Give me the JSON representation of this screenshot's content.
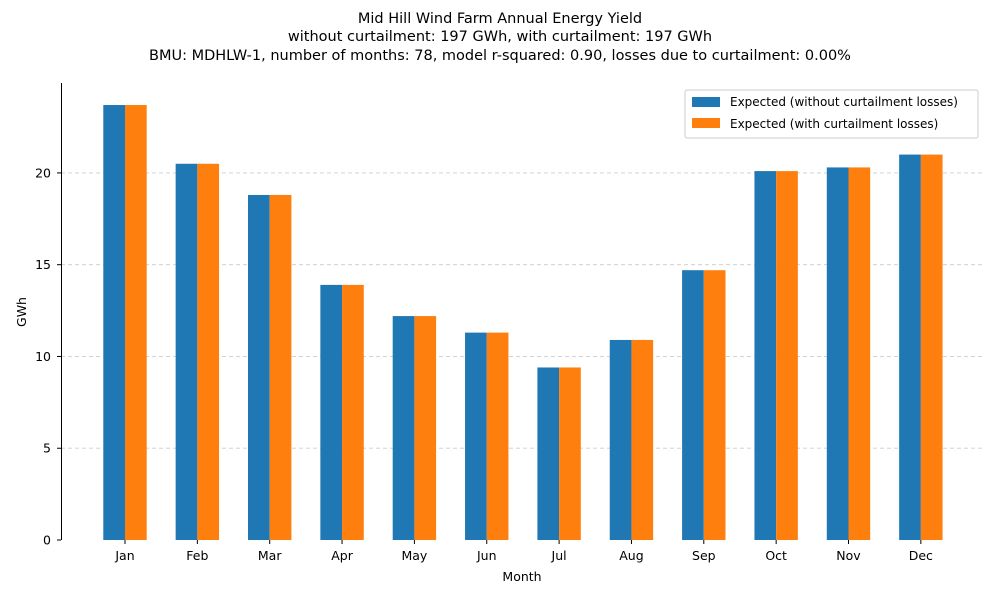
{
  "chart_data": {
    "type": "bar",
    "title_lines": [
      "Mid Hill Wind Farm Annual Energy Yield",
      "without curtailment: 197 GWh, with curtailment: 197 GWh",
      "BMU: MDHLW-1, number of months: 78, model r-squared: 0.90, losses due to curtailment: 0.00%"
    ],
    "xlabel": "Month",
    "ylabel": "GWh",
    "ylim": [
      0,
      24.9
    ],
    "yticks": [
      0,
      5,
      10,
      15,
      20
    ],
    "grid": "y-dashed",
    "legend_position": "top-right",
    "categories": [
      "Jan",
      "Feb",
      "Mar",
      "Apr",
      "May",
      "Jun",
      "Jul",
      "Aug",
      "Sep",
      "Oct",
      "Nov",
      "Dec"
    ],
    "series": [
      {
        "name": "Expected (without curtailment losses)",
        "color": "#1f77b4",
        "values": [
          23.7,
          20.5,
          18.8,
          13.9,
          12.2,
          11.3,
          9.4,
          10.9,
          14.7,
          20.1,
          20.3,
          21.0
        ]
      },
      {
        "name": "Expected (with curtailment losses)",
        "color": "#ff7f0e",
        "values": [
          23.7,
          20.5,
          18.8,
          13.9,
          12.2,
          11.3,
          9.4,
          10.9,
          14.7,
          20.1,
          20.3,
          21.0
        ]
      }
    ]
  }
}
